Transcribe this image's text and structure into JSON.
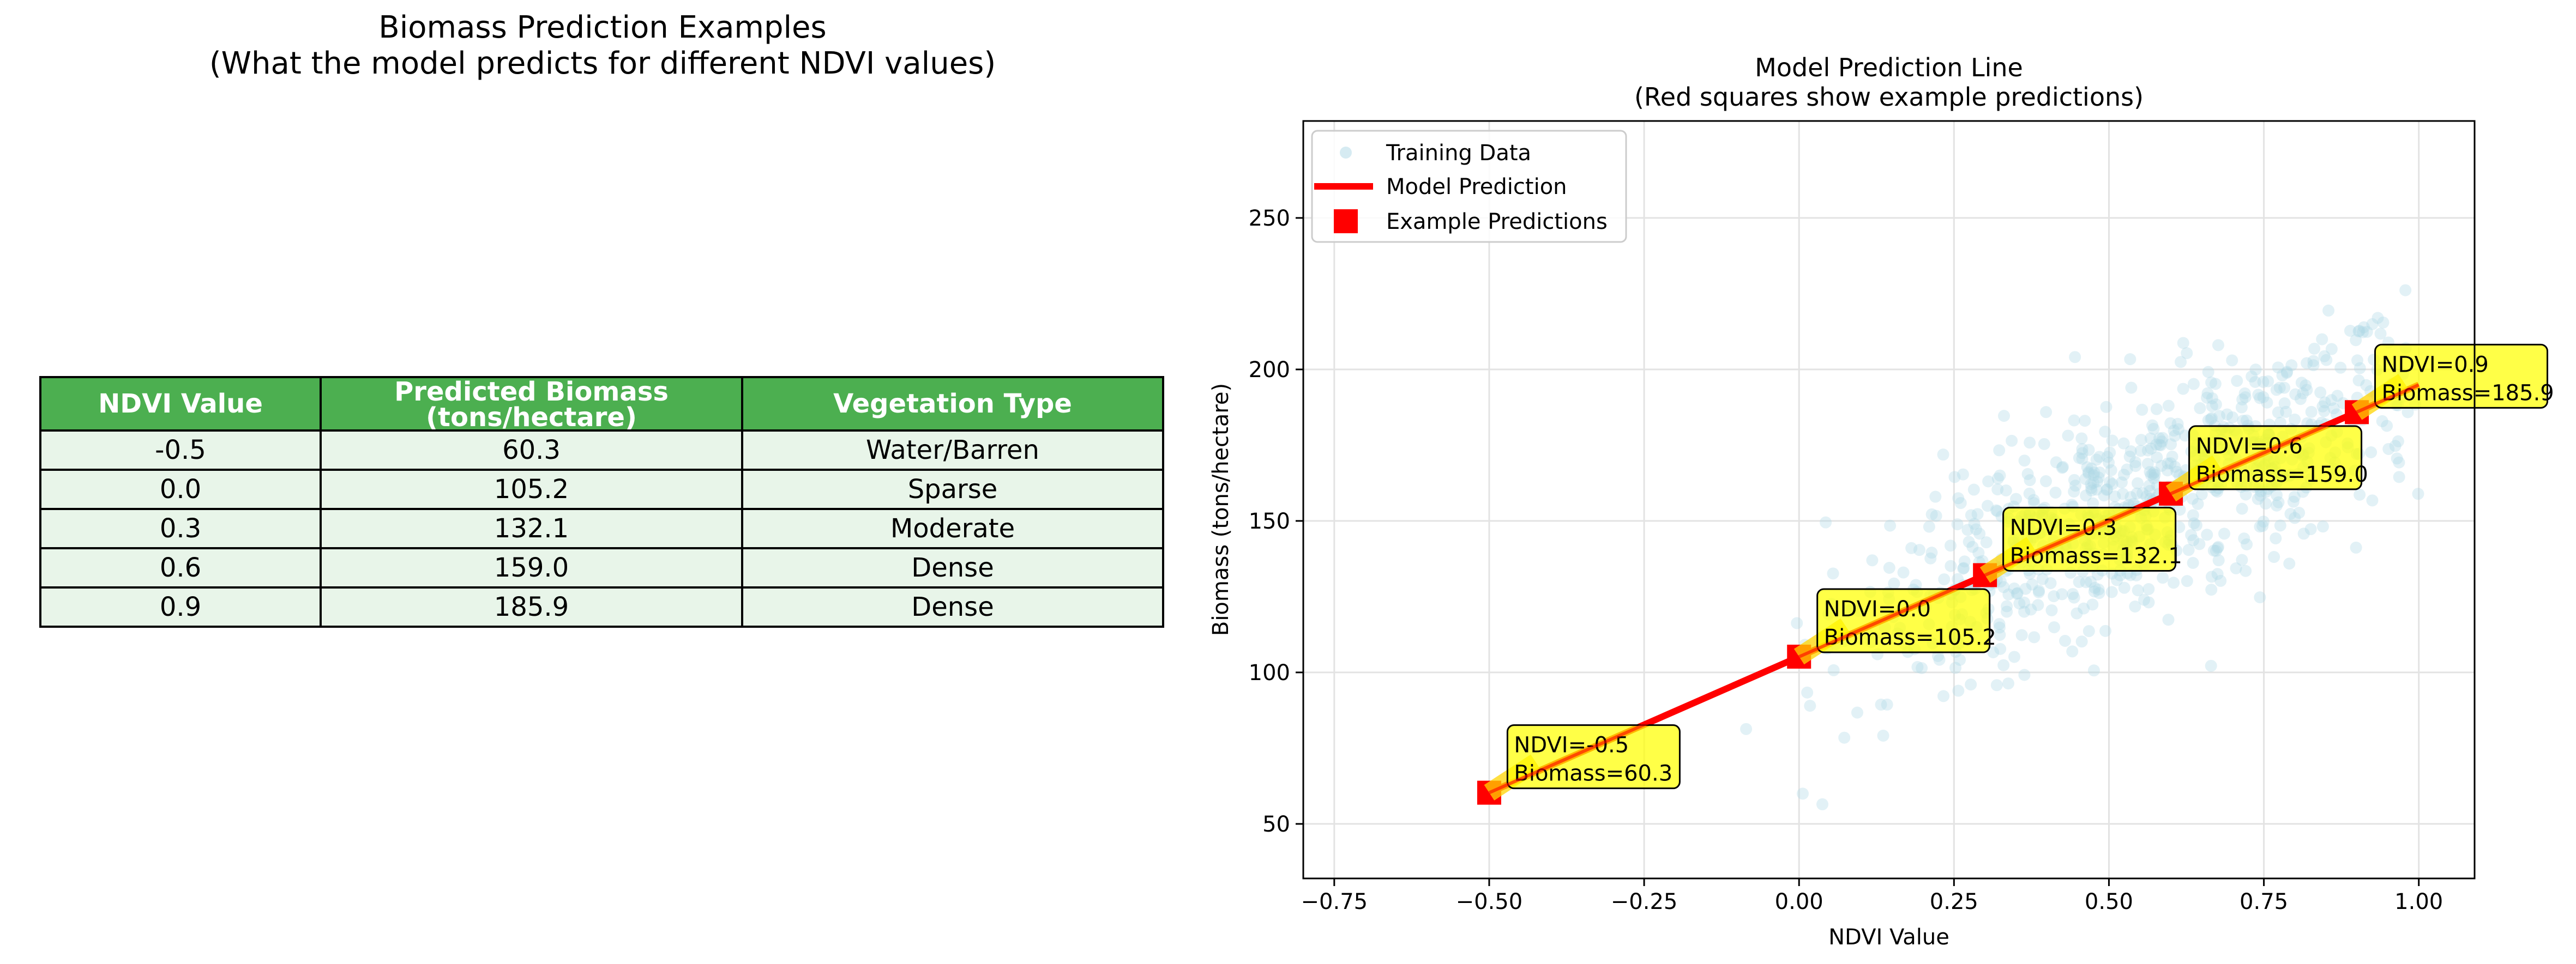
{
  "table": {
    "title_line1": "Biomass Prediction Examples",
    "title_line2": "(What the model predicts for different NDVI values)",
    "headers": [
      "NDVI Value",
      "Predicted Biomass\n(tons/hectare)",
      "Vegetation Type"
    ],
    "header_line1": "Predicted Biomass",
    "header_line2": "(tons/hectare)",
    "rows": [
      [
        "-0.5",
        "60.3",
        "Water/Barren"
      ],
      [
        "0.0",
        "105.2",
        "Sparse"
      ],
      [
        "0.3",
        "132.1",
        "Moderate"
      ],
      [
        "0.6",
        "159.0",
        "Dense"
      ],
      [
        "0.9",
        "185.9",
        "Dense"
      ]
    ],
    "header_color": "#4caf50",
    "cell_color": "#e8f5e9"
  },
  "chart_data": {
    "type": "scatter",
    "title": "Model Prediction Line",
    "subtitle": "(Red squares show example predictions)",
    "xlabel": "NDVI Value",
    "ylabel": "Biomass (tons/hectare)",
    "xlim": [
      -0.8,
      1.09
    ],
    "ylim": [
      32,
      282
    ],
    "xticks": [
      -0.75,
      -0.5,
      -0.25,
      0.0,
      0.25,
      0.5,
      0.75,
      1.0
    ],
    "xtick_labels": [
      "−0.75",
      "−0.50",
      "−0.25",
      "0.00",
      "0.25",
      "0.50",
      "0.75",
      "1.00"
    ],
    "yticks": [
      50,
      100,
      150,
      200,
      250
    ],
    "ytick_labels": [
      "50",
      "100",
      "150",
      "200",
      "250"
    ],
    "grid": true,
    "legend_position": "top-left",
    "legend": [
      "Training Data",
      "Model Prediction",
      "Example Predictions"
    ],
    "model_line": {
      "x": [
        -0.5,
        1.0
      ],
      "y": [
        60.3,
        194.9
      ],
      "color": "#ff0000"
    },
    "training_color": "#add8e6",
    "training_data_note": "approx. 800 points, NDVI in [-0.73, 1.0], biomass about 89.7*NDVI + 105.2 with noise",
    "example_predictions": [
      {
        "x": -0.5,
        "y": 60.3,
        "label_line1": "NDVI=-0.5",
        "label_line2": "Biomass=60.3"
      },
      {
        "x": 0.0,
        "y": 105.2,
        "label_line1": "NDVI=0.0",
        "label_line2": "Biomass=105.2"
      },
      {
        "x": 0.3,
        "y": 132.1,
        "label_line1": "NDVI=0.3",
        "label_line2": "Biomass=132.1"
      },
      {
        "x": 0.6,
        "y": 159.0,
        "label_line1": "NDVI=0.6",
        "label_line2": "Biomass=159.0"
      },
      {
        "x": 0.9,
        "y": 185.9,
        "label_line1": "NDVI=0.9",
        "label_line2": "Biomass=185.9"
      }
    ],
    "marker_color": "#ff0000",
    "annotation_color": "#ffff00"
  }
}
